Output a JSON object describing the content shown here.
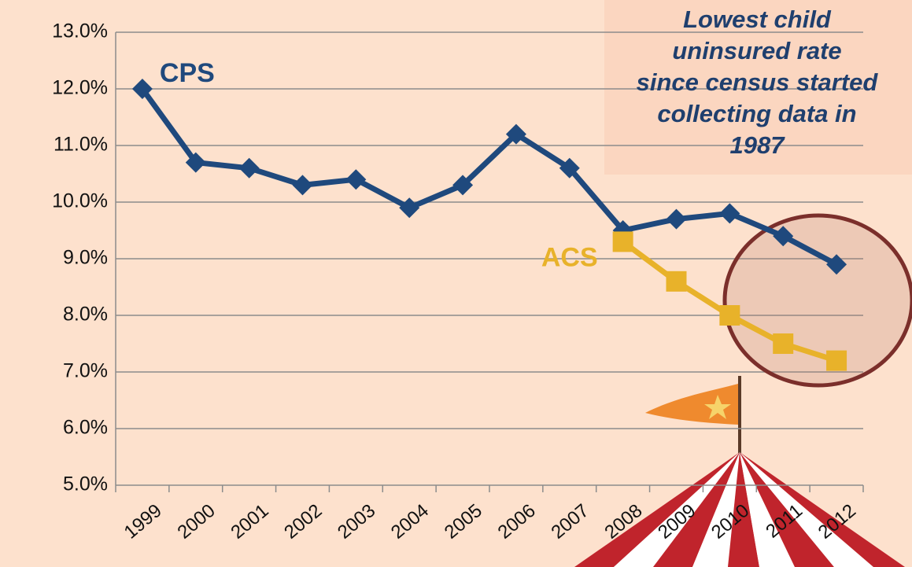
{
  "chart_data": {
    "type": "line",
    "annotation": [
      "Lowest child",
      "uninsured rate",
      "since census started",
      "collecting data in",
      "1987"
    ],
    "categories": [
      "1999",
      "2000",
      "2001",
      "2002",
      "2003",
      "2004",
      "2005",
      "2006",
      "2007",
      "2008",
      "2009",
      "2010",
      "2011",
      "2012"
    ],
    "series": [
      {
        "name": "CPS",
        "color": "#1f497d",
        "marker": "diamond",
        "values": [
          12.0,
          10.7,
          10.6,
          10.3,
          10.4,
          9.9,
          10.3,
          11.2,
          10.6,
          9.5,
          9.7,
          9.8,
          9.4,
          8.9
        ]
      },
      {
        "name": "ACS",
        "color": "#e8b22a",
        "marker": "square",
        "values": [
          null,
          null,
          null,
          null,
          null,
          null,
          null,
          null,
          null,
          9.3,
          8.6,
          8.0,
          7.5,
          7.2
        ]
      }
    ],
    "ylim": [
      5,
      13
    ],
    "yticks": [
      {
        "value": 5,
        "label": "5.0%"
      },
      {
        "value": 6,
        "label": "6.0%"
      },
      {
        "value": 7,
        "label": "7.0%"
      },
      {
        "value": 8,
        "label": "8.0%"
      },
      {
        "value": 9,
        "label": "9.0%"
      },
      {
        "value": 10,
        "label": "10.0%"
      },
      {
        "value": 11,
        "label": "11.0%"
      },
      {
        "value": 12,
        "label": "12.0%"
      },
      {
        "value": 13,
        "label": "13.0%"
      }
    ],
    "grid": true
  }
}
